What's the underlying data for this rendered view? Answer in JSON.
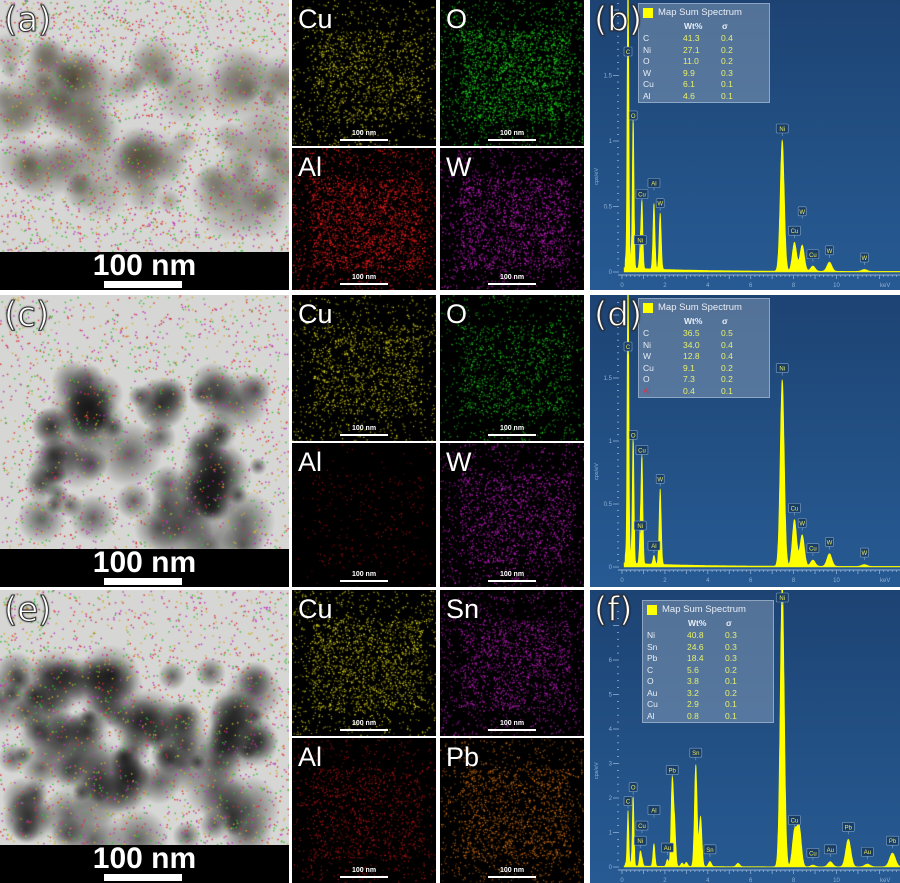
{
  "panels": [
    {
      "tem_label": "(a)",
      "tem_scale": "100 nm",
      "maps": [
        {
          "element": "Cu",
          "color": "#e6e020",
          "scale": "100 nm"
        },
        {
          "element": "O",
          "color": "#20e020",
          "scale": "100 nm"
        },
        {
          "element": "Al",
          "color": "#ff2020",
          "scale": "100 nm"
        },
        {
          "element": "W",
          "color": "#d020d0",
          "scale": "100 nm"
        }
      ],
      "spectrum_label": "(b)"
    },
    {
      "tem_label": "(c)",
      "tem_scale": "100 nm",
      "maps": [
        {
          "element": "Cu",
          "color": "#e6e020",
          "scale": "100 nm"
        },
        {
          "element": "O",
          "color": "#20d020",
          "scale": "100 nm"
        },
        {
          "element": "Al",
          "color": "#b01010",
          "scale": "100 nm"
        },
        {
          "element": "W",
          "color": "#d020d0",
          "scale": "100 nm"
        }
      ],
      "spectrum_label": "(d)"
    },
    {
      "tem_label": "(e)",
      "tem_scale": "100 nm",
      "maps": [
        {
          "element": "Cu",
          "color": "#e6e020",
          "scale": "100 nm"
        },
        {
          "element": "Sn",
          "color": "#c020c0",
          "scale": "100 nm"
        },
        {
          "element": "Al",
          "color": "#c01818",
          "scale": "100 nm"
        },
        {
          "element": "Pb",
          "color": "#e07818",
          "scale": "100 nm"
        }
      ],
      "spectrum_label": "(f)"
    }
  ],
  "chart_data": [
    {
      "type": "area",
      "title": "Map Sum Spectrum",
      "xlabel": "keV",
      "ylabel": "cps/eV",
      "xlim": [
        0,
        12.9
      ],
      "ylim": [
        0,
        2.07
      ],
      "xticks": [
        "0",
        "2",
        "4",
        "6",
        "8",
        "10"
      ],
      "yticks": [
        "0",
        "0.5",
        "1",
        "1.5"
      ],
      "series_color": "#ffff00",
      "table_headers": [
        "",
        "Wt%",
        "σ"
      ],
      "table": [
        {
          "element": "C",
          "wt": "41.3",
          "sigma": "0.4"
        },
        {
          "element": "Ni",
          "wt": "27.1",
          "sigma": "0.2"
        },
        {
          "element": "O",
          "wt": "11.0",
          "sigma": "0.2"
        },
        {
          "element": "W",
          "wt": "9.9",
          "sigma": "0.3"
        },
        {
          "element": "Cu",
          "wt": "6.1",
          "sigma": "0.1"
        },
        {
          "element": "Al",
          "wt": "4.6",
          "sigma": "0.1"
        }
      ],
      "peaks": [
        {
          "element": "C",
          "keV": 0.28,
          "height": 2.4
        },
        {
          "element": "O",
          "keV": 0.52,
          "height": 1.1
        },
        {
          "element": "Ni",
          "keV": 0.85,
          "height": 0.15
        },
        {
          "element": "Cu",
          "keV": 0.93,
          "height": 0.5
        },
        {
          "element": "Al",
          "keV": 1.49,
          "height": 0.5
        },
        {
          "element": "W",
          "keV": 1.78,
          "height": 0.43
        },
        {
          "element": "Ni",
          "keV": 7.47,
          "height": 1.0
        },
        {
          "element": "Cu",
          "keV": 8.04,
          "height": 0.22
        },
        {
          "element": "W",
          "keV": 8.4,
          "height": 0.2
        },
        {
          "element": "Cu",
          "keV": 8.9,
          "height": 0.04
        },
        {
          "element": "W",
          "keV": 9.67,
          "height": 0.07
        },
        {
          "element": "W",
          "keV": 11.3,
          "height": 0.015
        }
      ]
    },
    {
      "type": "area",
      "title": "Map Sum Spectrum",
      "xlabel": "keV",
      "ylabel": "cps/eV",
      "xlim": [
        0,
        12.9
      ],
      "ylim": [
        0,
        2.15
      ],
      "xticks": [
        "0",
        "2",
        "4",
        "6",
        "8",
        "10"
      ],
      "yticks": [
        "0",
        "0.5",
        "1",
        "1.5"
      ],
      "series_color": "#ffff00",
      "table_headers": [
        "",
        "Wt%",
        "σ"
      ],
      "table": [
        {
          "element": "C",
          "wt": "36.5",
          "sigma": "0.5"
        },
        {
          "element": "Ni",
          "wt": "34.0",
          "sigma": "0.4"
        },
        {
          "element": "W",
          "wt": "12.8",
          "sigma": "0.4"
        },
        {
          "element": "Cu",
          "wt": "9.1",
          "sigma": "0.2"
        },
        {
          "element": "O",
          "wt": "7.3",
          "sigma": "0.2"
        },
        {
          "element": "Al",
          "wt": "0.4",
          "sigma": "0.1",
          "highlight": "#e0304a"
        }
      ],
      "peaks": [
        {
          "element": "C",
          "keV": 0.28,
          "height": 2.5
        },
        {
          "element": "O",
          "keV": 0.52,
          "height": 0.95
        },
        {
          "element": "Ni",
          "keV": 0.85,
          "height": 0.23
        },
        {
          "element": "Cu",
          "keV": 0.93,
          "height": 0.83
        },
        {
          "element": "Al",
          "keV": 1.49,
          "height": 0.07
        },
        {
          "element": "W",
          "keV": 1.78,
          "height": 0.6
        },
        {
          "element": "Ni",
          "keV": 7.47,
          "height": 1.48
        },
        {
          "element": "Cu",
          "keV": 8.04,
          "height": 0.37
        },
        {
          "element": "W",
          "keV": 8.4,
          "height": 0.25
        },
        {
          "element": "Cu",
          "keV": 8.9,
          "height": 0.05
        },
        {
          "element": "W",
          "keV": 9.67,
          "height": 0.1
        },
        {
          "element": "W",
          "keV": 11.3,
          "height": 0.015
        }
      ]
    },
    {
      "type": "area",
      "title": "Map Sum Spectrum",
      "xlabel": "keV",
      "ylabel": "cps/eV",
      "xlim": [
        0,
        12.9
      ],
      "ylim": [
        0,
        7.9
      ],
      "xticks": [
        "0",
        "2",
        "4",
        "6",
        "8",
        "10"
      ],
      "yticks": [
        "0",
        "1",
        "2",
        "3",
        "4",
        "5",
        "6"
      ],
      "series_color": "#ffff00",
      "table_headers": [
        "",
        "Wt%",
        "σ"
      ],
      "table": [
        {
          "element": "Ni",
          "wt": "40.8",
          "sigma": "0.3"
        },
        {
          "element": "Sn",
          "wt": "24.6",
          "sigma": "0.3"
        },
        {
          "element": "Pb",
          "wt": "18.4",
          "sigma": "0.3"
        },
        {
          "element": "C",
          "wt": "5.6",
          "sigma": "0.2"
        },
        {
          "element": "O",
          "wt": "3.8",
          "sigma": "0.1"
        },
        {
          "element": "Au",
          "wt": "3.2",
          "sigma": "0.2"
        },
        {
          "element": "Cu",
          "wt": "2.9",
          "sigma": "0.1"
        },
        {
          "element": "Al",
          "wt": "0.8",
          "sigma": "0.1"
        }
      ],
      "peaks": [
        {
          "element": "C",
          "keV": 0.28,
          "height": 1.55
        },
        {
          "element": "O",
          "keV": 0.52,
          "height": 1.95
        },
        {
          "element": "Ni",
          "keV": 0.85,
          "height": 0.4
        },
        {
          "element": "Cu",
          "keV": 0.93,
          "height": 0.2
        },
        {
          "element": "Al",
          "keV": 1.49,
          "height": 0.65
        },
        {
          "element": "Au",
          "keV": 2.12,
          "height": 0.2
        },
        {
          "element": "Pb",
          "keV": 2.34,
          "height": 2.45
        },
        {
          "element": "Sn",
          "keV": 3.44,
          "height": 2.95
        },
        {
          "element": "Sn",
          "keV": 4.1,
          "height": 0.15
        },
        {
          "element": "Ni",
          "keV": 7.47,
          "height": 8.2
        },
        {
          "element": "Cu",
          "keV": 8.04,
          "height": 1.0
        },
        {
          "element": "Cu",
          "keV": 8.9,
          "height": 0.05
        },
        {
          "element": "Au",
          "keV": 9.71,
          "height": 0.15
        },
        {
          "element": "Pb",
          "keV": 10.55,
          "height": 0.8
        },
        {
          "element": "Au",
          "keV": 11.44,
          "height": 0.08
        },
        {
          "element": "Pb",
          "keV": 12.61,
          "height": 0.4
        }
      ]
    }
  ]
}
